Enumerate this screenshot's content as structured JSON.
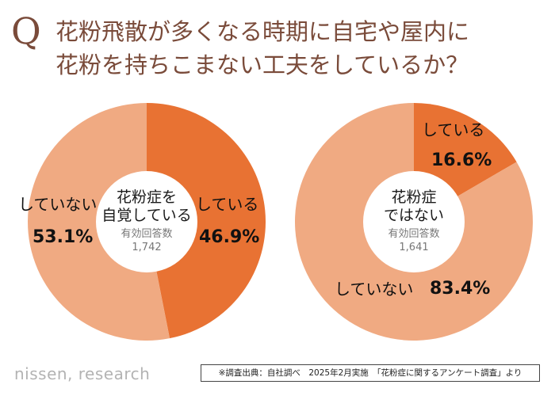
{
  "header": {
    "q_mark": "Q",
    "title_line1": "花粉飛散が多くなる時期に自宅や屋内に",
    "title_line2": "花粉を持ちこまない工夫をしているか？"
  },
  "colors": {
    "did": "#e87233",
    "did_not": "#f0aa82",
    "title": "#7a4b3a",
    "center": "#ffffff"
  },
  "chart_data": [
    {
      "type": "pie",
      "title_lines": [
        "花粉症を",
        "自覚している"
      ],
      "base_label": "有効回答数",
      "base_n": "1,742",
      "slices": [
        {
          "label": "している",
          "value": 46.9,
          "value_text": "46.9%"
        },
        {
          "label": "していない",
          "value": 53.1,
          "value_text": "53.1%"
        }
      ]
    },
    {
      "type": "pie",
      "title_lines": [
        "花粉症",
        "ではない"
      ],
      "base_label": "有効回答数",
      "base_n": "1,641",
      "slices": [
        {
          "label": "している",
          "value": 16.6,
          "value_text": "16.6%"
        },
        {
          "label": "していない",
          "value": 83.4,
          "value_text": "83.4%"
        }
      ]
    }
  ],
  "footer": {
    "logo": "nissen, research",
    "source": "※調査出典：自社調べ　2025年2月実施　「花粉症に関するアンケート調査」より"
  }
}
